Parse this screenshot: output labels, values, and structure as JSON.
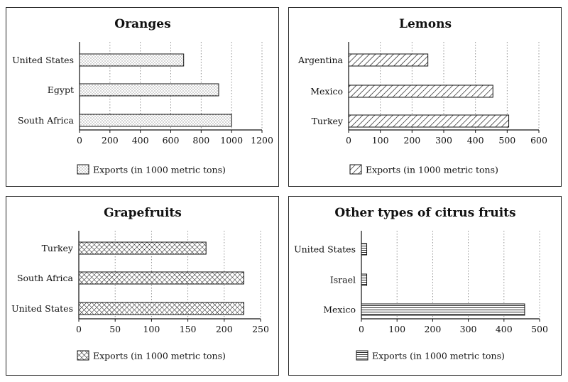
{
  "chart_data": [
    {
      "type": "bar",
      "orientation": "horizontal",
      "title": "Oranges",
      "categories": [
        "United States",
        "Egypt",
        "South Africa"
      ],
      "values": [
        685,
        915,
        1000
      ],
      "xlim": [
        0,
        1200
      ],
      "ticks": [
        0,
        200,
        400,
        600,
        800,
        1000,
        1200
      ],
      "legend": "Exports (in 1000 metric tons)",
      "pattern": "dots",
      "grid": "vertical dotted"
    },
    {
      "type": "bar",
      "orientation": "horizontal",
      "title": "Lemons",
      "categories": [
        "Argentina",
        "Mexico",
        "Turkey"
      ],
      "values": [
        250,
        455,
        505
      ],
      "xlim": [
        0,
        600
      ],
      "ticks": [
        0,
        100,
        200,
        300,
        400,
        500,
        600
      ],
      "legend": "Exports (in 1000 metric tons)",
      "pattern": "diagonal",
      "grid": "vertical dotted"
    },
    {
      "type": "bar",
      "orientation": "horizontal",
      "title": "Grapefruits",
      "categories": [
        "Turkey",
        "South Africa",
        "United States"
      ],
      "values": [
        175,
        227,
        227
      ],
      "xlim": [
        0,
        250
      ],
      "ticks": [
        0,
        50,
        100,
        150,
        200,
        250
      ],
      "legend": "Exports (in 1000 metric tons)",
      "pattern": "crosshatch",
      "grid": "vertical dotted"
    },
    {
      "type": "bar",
      "orientation": "horizontal",
      "title": "Other types of citrus fruits",
      "categories": [
        "United States",
        "Israel",
        "Mexico"
      ],
      "values": [
        15,
        15,
        458
      ],
      "xlim": [
        0,
        500
      ],
      "ticks": [
        0,
        100,
        200,
        300,
        400,
        500
      ],
      "legend": "Exports (in 1000 metric tons)",
      "pattern": "horizontal",
      "grid": "vertical dotted"
    }
  ]
}
